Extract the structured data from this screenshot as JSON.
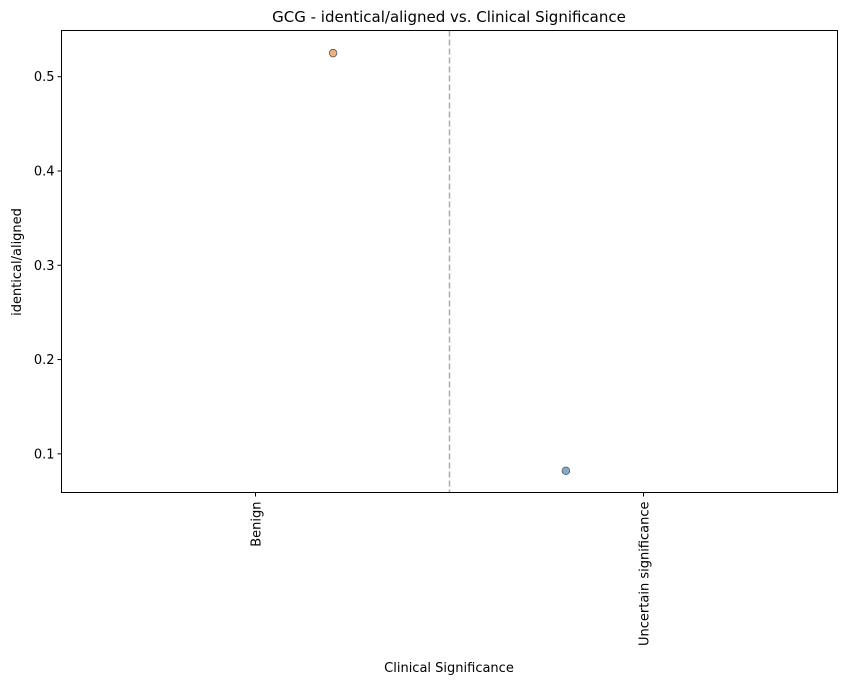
{
  "chart_data": {
    "type": "scatter",
    "title": "GCG - identical/aligned vs. Clinical Significance",
    "xlabel": "Clinical Significance",
    "ylabel": "identical/aligned",
    "categories": [
      "Benign",
      "Uncertain significance"
    ],
    "ylim": [
      0.059,
      0.549
    ],
    "yticks": [
      "0.1",
      "0.2",
      "0.3",
      "0.4",
      "0.5"
    ],
    "grid": false,
    "separator": {
      "position_between_categories": 0.5,
      "style": "dashed",
      "color": "#aaaaaa"
    },
    "points": [
      {
        "category": "Benign",
        "jitter": 0.2,
        "y": 0.525,
        "color": "#f0a35e"
      },
      {
        "category": "Uncertain significance",
        "jitter": -0.2,
        "y": 0.082,
        "color": "#6a9ec5"
      }
    ]
  }
}
